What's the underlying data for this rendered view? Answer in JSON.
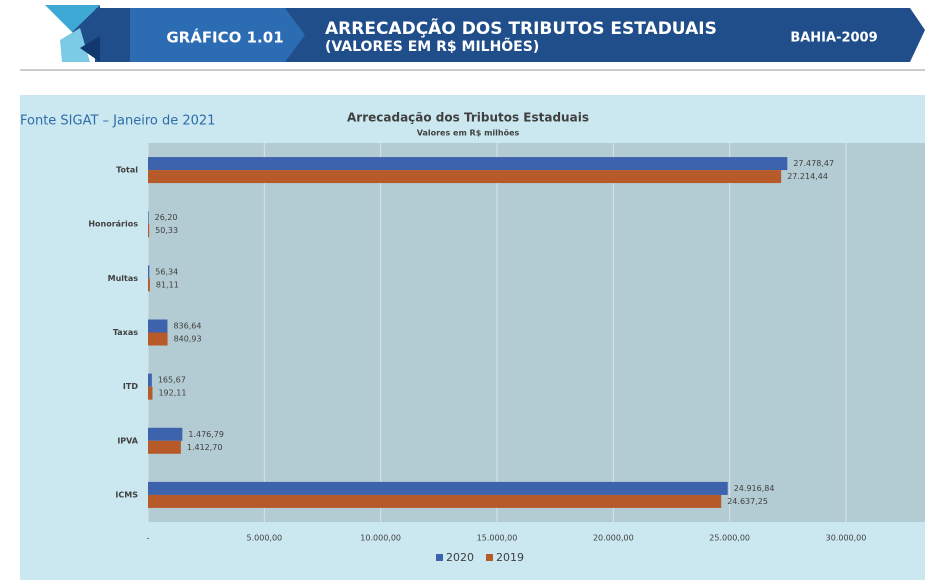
{
  "header": {
    "badge": "GRÁFICO 1.01",
    "title_line1": "ARRECADÇÃO DOS TRIBUTOS ESTADUAIS",
    "title_line2": "(VALORES EM R$ MILHÕES)",
    "region": "BAHIA-2009"
  },
  "source": "Fonte SIGAT – Janeiro de 2021",
  "chart_data": {
    "type": "hbar",
    "title": "Arrecadação dos Tributos Estaduais",
    "subtitle": "Valores em R$ milhões",
    "categories": [
      "Total",
      "Honorários",
      "Multas",
      "Taxas",
      "ITD",
      "IPVA",
      "ICMS"
    ],
    "series": [
      {
        "name": "2020",
        "color": "#3e63ad",
        "values": [
          27478.47,
          26.2,
          56.34,
          836.64,
          165.67,
          1476.79,
          24916.84
        ],
        "value_labels": [
          "27.478,47",
          "26,20",
          "56,34",
          "836,64",
          "165,67",
          "1.476,79",
          "24.916,84"
        ]
      },
      {
        "name": "2019",
        "color": "#b75a2a",
        "values": [
          27214.44,
          50.33,
          81.11,
          840.93,
          192.11,
          1412.7,
          24637.25
        ],
        "value_labels": [
          "27.214,44",
          "50,33",
          "81,11",
          "840,93",
          "192,11",
          "1.412,70",
          "24.637,25"
        ]
      }
    ],
    "xlim": [
      0,
      30000
    ],
    "xticks": [
      {
        "value": 0,
        "label": "-"
      },
      {
        "value": 5000,
        "label": "5.000,00"
      },
      {
        "value": 10000,
        "label": "10.000,00"
      },
      {
        "value": 15000,
        "label": "15.000,00"
      },
      {
        "value": 20000,
        "label": "20.000,00"
      },
      {
        "value": 25000,
        "label": "25.000,00"
      },
      {
        "value": 30000,
        "label": "30.000,00"
      }
    ],
    "grid": true,
    "legend": "bottom"
  }
}
